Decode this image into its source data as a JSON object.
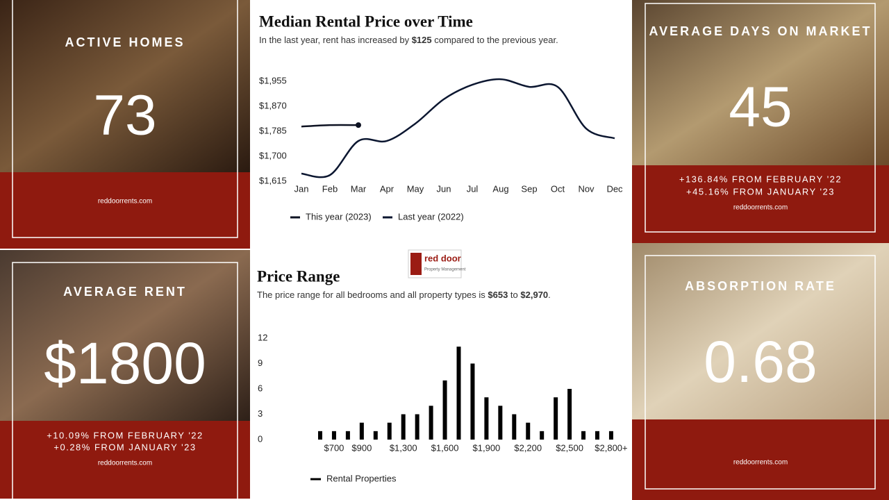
{
  "cards": [
    {
      "title": "ACTIVE HOMES",
      "value": "73",
      "notes": [],
      "site": "reddoorrents.com"
    },
    {
      "title": "AVERAGE DAYS ON MARKET",
      "value": "45",
      "notes": [
        "+136.84% FROM FEBRUARY '22",
        "+45.16% FROM JANUARY '23"
      ],
      "site": "reddoorrents.com"
    },
    {
      "title": "AVERAGE RENT",
      "value": "$1800",
      "notes": [
        "+10.09% FROM FEBRUARY '22",
        "+0.28% FROM JANUARY '23"
      ],
      "site": "reddoorrents.com"
    },
    {
      "title": "ABSORPTION RATE",
      "value": "0.68",
      "notes": [],
      "site": "reddoorrents.com"
    }
  ],
  "logo": {
    "name": "red door",
    "tagline": "Property Management"
  },
  "chart_data": [
    {
      "type": "line",
      "title": "Median Rental Price over Time",
      "subtitle": [
        "In the last year, rent has increased by ",
        "$125",
        " compared to the previous year."
      ],
      "categories": [
        "Jan",
        "Feb",
        "Mar",
        "Apr",
        "May",
        "Jun",
        "Jul",
        "Aug",
        "Sep",
        "Oct",
        "Nov",
        "Dec"
      ],
      "series": [
        {
          "name": "This year (2023)",
          "color": "#0d1222",
          "values": [
            1801,
            1806,
            1806,
            null,
            null,
            null,
            null,
            null,
            null,
            null,
            null,
            null
          ]
        },
        {
          "name": "Last year (2022)",
          "color": "#0b1630",
          "values": [
            1641,
            1636,
            1752,
            1752,
            1811,
            1894,
            1943,
            1962,
            1936,
            1936,
            1794,
            1761
          ]
        }
      ],
      "ylim": [
        1615,
        1965
      ],
      "yticks": [
        {
          "value": 1615,
          "label": "$1,615"
        },
        {
          "value": 1700,
          "label": "$1,700"
        },
        {
          "value": 1785,
          "label": "$1,785"
        },
        {
          "value": 1870,
          "label": "$1,870"
        },
        {
          "value": 1955,
          "label": "$1,955"
        }
      ],
      "grid": false
    },
    {
      "type": "bar",
      "title": "Price Range",
      "subtitle": [
        "The price range for all bedrooms and all property types is ",
        "$653",
        " to ",
        "$2,970",
        "."
      ],
      "categories": [
        null,
        "$700",
        null,
        "$900",
        null,
        null,
        "$1,300",
        null,
        null,
        "$1,600",
        null,
        null,
        "$1,900",
        null,
        null,
        "$2,200",
        null,
        null,
        "$2,500",
        null,
        null,
        "$2,800+"
      ],
      "series": [
        {
          "name": "Rental Properties",
          "color": "#000000",
          "values": [
            1,
            1,
            1,
            2,
            1,
            2,
            3,
            3,
            4,
            7,
            11,
            9,
            5,
            4,
            3,
            2,
            1,
            5,
            6,
            1,
            1,
            1
          ]
        }
      ],
      "ylim": [
        0,
        12
      ],
      "yticks": [
        0,
        3,
        6,
        9,
        12
      ],
      "grid": false
    }
  ]
}
